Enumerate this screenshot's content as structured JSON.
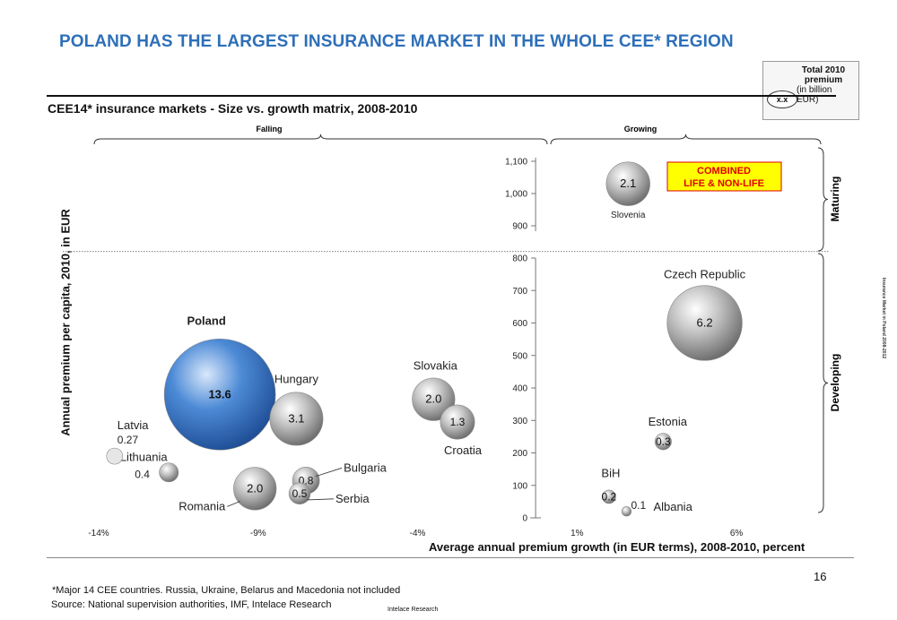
{
  "headline": "POLAND HAS THE LARGEST INSURANCE MARKET IN THE WHOLE CEE* REGION",
  "legend": {
    "oval_label": "x.x",
    "title": "Total 2010 premium",
    "subtitle": "(in billion EUR)"
  },
  "page_number": "16",
  "footnote": "*Major 14 CEE countries. Russia, Ukraine, Belarus and Macedonia not included",
  "source": "Source: National supervision authorities, IMF, Intelace Research",
  "source_tag": "Intelace Research",
  "side_note": "Insurance Market in Poland 2008-2012",
  "colors": {
    "headline": "#2e6fb8",
    "poland_bubble": "#3f7fd0",
    "other_bubble": "#b5b5b5",
    "combined_box_fill": "#ffff00",
    "combined_box_text": "#e00000"
  },
  "chart_data": {
    "type": "bubble",
    "title": "CEE14* insurance markets - Size vs. growth matrix, 2008-2010",
    "xlabel": "Average annual premium growth (in EUR terms), 2008-2010, percent",
    "ylabel": "Annual premium per capita, 2010, in EUR",
    "x_ticks": [
      "-14%",
      "-9%",
      "-4%",
      "1%",
      "6%"
    ],
    "y_ticks": [
      "0",
      "100",
      "200",
      "300",
      "400",
      "500",
      "600",
      "700",
      "800",
      "900",
      "1,000",
      "1,100"
    ],
    "xlim": [
      -14,
      8.5
    ],
    "ylim": [
      0,
      1150
    ],
    "y_axis_at_x": -0.3,
    "y_axis_break": [
      820,
      880
    ],
    "quadrant_split_y": 820,
    "top_groups": [
      "Falling",
      "Growing"
    ],
    "right_groups": [
      "Maturing",
      "Developing"
    ],
    "annotation": "COMBINED LIFE & NON-LIFE",
    "series": [
      {
        "name": "Poland",
        "x": -10.2,
        "y": 380,
        "size": 13.6,
        "value_label": "13.6"
      },
      {
        "name": "Czech Republic",
        "x": 5.0,
        "y": 600,
        "size": 6.2,
        "value_label": "6.2"
      },
      {
        "name": "Hungary",
        "x": -7.8,
        "y": 305,
        "size": 3.1,
        "value_label": "3.1"
      },
      {
        "name": "Slovenia",
        "x": 2.6,
        "y": 1030,
        "size": 2.1,
        "value_label": "2.1"
      },
      {
        "name": "Slovakia",
        "x": -3.5,
        "y": 365,
        "size": 2.0,
        "value_label": "2.0"
      },
      {
        "name": "Romania",
        "x": -9.1,
        "y": 90,
        "size": 2.0,
        "value_label": "2.0"
      },
      {
        "name": "Croatia",
        "x": -2.75,
        "y": 295,
        "size": 1.3,
        "value_label": "1.3"
      },
      {
        "name": "Bulgaria",
        "x": -7.5,
        "y": 115,
        "size": 0.8,
        "value_label": "0.8"
      },
      {
        "name": "Serbia",
        "x": -7.7,
        "y": 75,
        "size": 0.5,
        "value_label": "0.5"
      },
      {
        "name": "Lithuania",
        "x": -11.8,
        "y": 140,
        "size": 0.4,
        "value_label": "0.4"
      },
      {
        "name": "Estonia",
        "x": 3.7,
        "y": 235,
        "size": 0.3,
        "value_label": "0.3"
      },
      {
        "name": "BiH",
        "x": 2.0,
        "y": 65,
        "size": 0.2,
        "value_label": "0.2"
      },
      {
        "name": "Albania",
        "x": 2.55,
        "y": 20,
        "size": 0.1,
        "value_label": "0.1"
      },
      {
        "name": "Latvia",
        "x": -13.5,
        "y": 190,
        "size": 0.27,
        "value_label": "0.27"
      }
    ]
  }
}
